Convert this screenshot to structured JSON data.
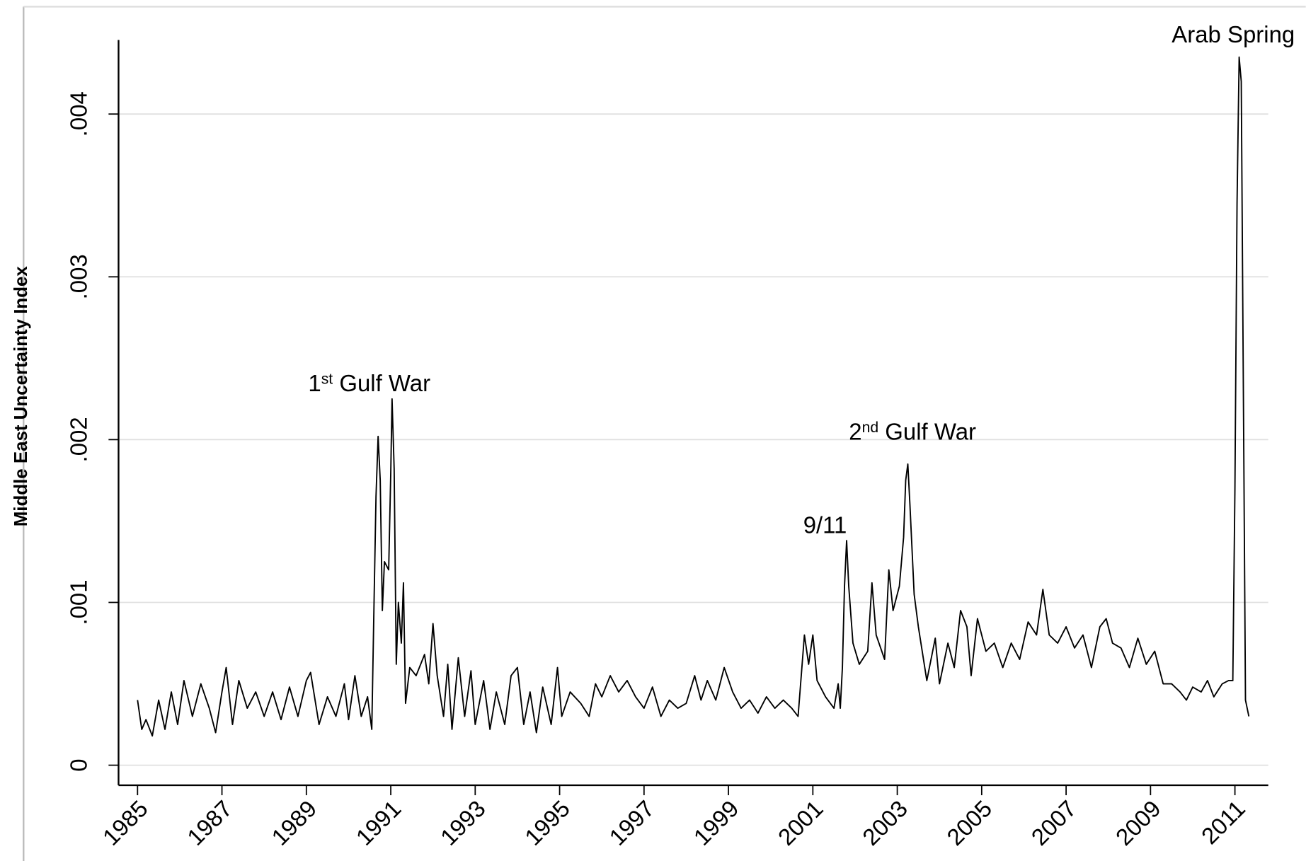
{
  "chart_data": {
    "type": "line",
    "y_label": "Middle East Uncertainty Index",
    "color": "#000000",
    "grid": true,
    "xlim": [
      1984.55,
      2011.79
    ],
    "ylim": [
      -0.000123,
      0.004455
    ],
    "xticks": [
      1985,
      1987,
      1989,
      1991,
      1993,
      1995,
      1997,
      1999,
      2001,
      2003,
      2005,
      2007,
      2009,
      2011
    ],
    "yticks": [
      0,
      {
        "value": 0.001,
        "label": ".001"
      },
      {
        "value": 0.002,
        "label": ".002"
      },
      {
        "value": 0.003,
        "label": ".003"
      },
      {
        "value": 0.004,
        "label": ".004"
      }
    ],
    "annotations": [
      {
        "parts": [
          "1",
          "st",
          " Gulf War"
        ]
      },
      {
        "parts": [
          "9/11"
        ]
      },
      {
        "parts": [
          "2",
          "nd",
          " Gulf War"
        ]
      },
      {
        "parts": [
          "Arab Spring"
        ]
      }
    ],
    "x": [
      1985.0,
      1985.1,
      1985.2,
      1985.35,
      1985.5,
      1985.65,
      1985.8,
      1985.95,
      1986.1,
      1986.3,
      1986.5,
      1986.7,
      1986.85,
      1987.0,
      1987.1,
      1987.25,
      1987.4,
      1987.6,
      1987.8,
      1988.0,
      1988.2,
      1988.4,
      1988.6,
      1988.8,
      1989.0,
      1989.1,
      1989.3,
      1989.5,
      1989.7,
      1989.9,
      1990.0,
      1990.15,
      1990.3,
      1990.45,
      1990.55,
      1990.6,
      1990.65,
      1990.7,
      1990.75,
      1990.8,
      1990.85,
      1990.95,
      1991.0,
      1991.03,
      1991.08,
      1991.13,
      1991.18,
      1991.25,
      1991.3,
      1991.35,
      1991.45,
      1991.6,
      1991.8,
      1991.9,
      1992.0,
      1992.1,
      1992.25,
      1992.35,
      1992.45,
      1992.6,
      1992.75,
      1992.9,
      1993.0,
      1993.2,
      1993.35,
      1993.5,
      1993.7,
      1993.85,
      1994.0,
      1994.15,
      1994.3,
      1994.45,
      1994.6,
      1994.8,
      1994.95,
      1995.05,
      1995.25,
      1995.5,
      1995.7,
      1995.85,
      1996.0,
      1996.2,
      1996.4,
      1996.6,
      1996.8,
      1997.0,
      1997.2,
      1997.4,
      1997.6,
      1997.8,
      1998.0,
      1998.2,
      1998.35,
      1998.5,
      1998.7,
      1998.9,
      1999.1,
      1999.3,
      1999.5,
      1999.7,
      1999.9,
      2000.1,
      2000.3,
      2000.5,
      2000.65,
      2000.8,
      2000.9,
      2001.0,
      2001.1,
      2001.3,
      2001.5,
      2001.6,
      2001.65,
      2001.7,
      2001.75,
      2001.8,
      2001.85,
      2001.95,
      2002.1,
      2002.3,
      2002.4,
      2002.5,
      2002.7,
      2002.8,
      2002.9,
      2003.05,
      2003.15,
      2003.2,
      2003.25,
      2003.3,
      2003.4,
      2003.5,
      2003.7,
      2003.9,
      2004.0,
      2004.2,
      2004.35,
      2004.5,
      2004.65,
      2004.75,
      2004.9,
      2005.1,
      2005.3,
      2005.5,
      2005.7,
      2005.9,
      2006.1,
      2006.3,
      2006.45,
      2006.6,
      2006.8,
      2007.0,
      2007.2,
      2007.4,
      2007.6,
      2007.8,
      2007.95,
      2008.1,
      2008.3,
      2008.5,
      2008.7,
      2008.9,
      2009.1,
      2009.3,
      2009.5,
      2009.7,
      2009.85,
      2010.0,
      2010.2,
      2010.35,
      2010.5,
      2010.7,
      2010.85,
      2010.95,
      2011.0,
      2011.05,
      2011.1,
      2011.15,
      2011.2,
      2011.25,
      2011.33
    ],
    "values": [
      0.0004,
      0.00022,
      0.00028,
      0.00018,
      0.0004,
      0.00022,
      0.00045,
      0.00025,
      0.00052,
      0.0003,
      0.0005,
      0.00035,
      0.0002,
      0.00045,
      0.0006,
      0.00025,
      0.00052,
      0.00035,
      0.00045,
      0.0003,
      0.00045,
      0.00028,
      0.00048,
      0.0003,
      0.00052,
      0.00057,
      0.00025,
      0.00042,
      0.0003,
      0.0005,
      0.00028,
      0.00055,
      0.0003,
      0.00042,
      0.00022,
      0.00095,
      0.00165,
      0.00202,
      0.00175,
      0.00095,
      0.00125,
      0.0012,
      0.0018,
      0.00225,
      0.00182,
      0.00062,
      0.001,
      0.00075,
      0.00112,
      0.00038,
      0.0006,
      0.00055,
      0.00068,
      0.0005,
      0.00087,
      0.00055,
      0.0003,
      0.00062,
      0.00022,
      0.00066,
      0.0003,
      0.00058,
      0.00025,
      0.00052,
      0.00022,
      0.00045,
      0.00025,
      0.00055,
      0.0006,
      0.00025,
      0.00045,
      0.0002,
      0.00048,
      0.00025,
      0.0006,
      0.0003,
      0.00045,
      0.00038,
      0.0003,
      0.0005,
      0.00042,
      0.00055,
      0.00045,
      0.00052,
      0.00042,
      0.00035,
      0.00048,
      0.0003,
      0.0004,
      0.00035,
      0.00038,
      0.00055,
      0.0004,
      0.00052,
      0.0004,
      0.0006,
      0.00045,
      0.00035,
      0.0004,
      0.00032,
      0.00042,
      0.00035,
      0.0004,
      0.00035,
      0.0003,
      0.0008,
      0.00062,
      0.0008,
      0.00052,
      0.00042,
      0.00035,
      0.0005,
      0.00035,
      0.0006,
      0.0011,
      0.00138,
      0.0011,
      0.00075,
      0.00062,
      0.0007,
      0.00112,
      0.0008,
      0.00065,
      0.0012,
      0.00095,
      0.0011,
      0.0014,
      0.00175,
      0.00185,
      0.0016,
      0.00105,
      0.00085,
      0.00052,
      0.00078,
      0.0005,
      0.00075,
      0.0006,
      0.00095,
      0.00085,
      0.00055,
      0.0009,
      0.0007,
      0.00075,
      0.0006,
      0.00075,
      0.00065,
      0.00088,
      0.0008,
      0.00108,
      0.0008,
      0.00075,
      0.00085,
      0.00072,
      0.0008,
      0.0006,
      0.00085,
      0.0009,
      0.00075,
      0.00072,
      0.0006,
      0.00078,
      0.00062,
      0.0007,
      0.0005,
      0.0005,
      0.00045,
      0.0004,
      0.00048,
      0.00045,
      0.00052,
      0.00042,
      0.0005,
      0.00052,
      0.00052,
      0.0017,
      0.00345,
      0.00435,
      0.0042,
      0.0023,
      0.0004,
      0.0003
    ]
  }
}
